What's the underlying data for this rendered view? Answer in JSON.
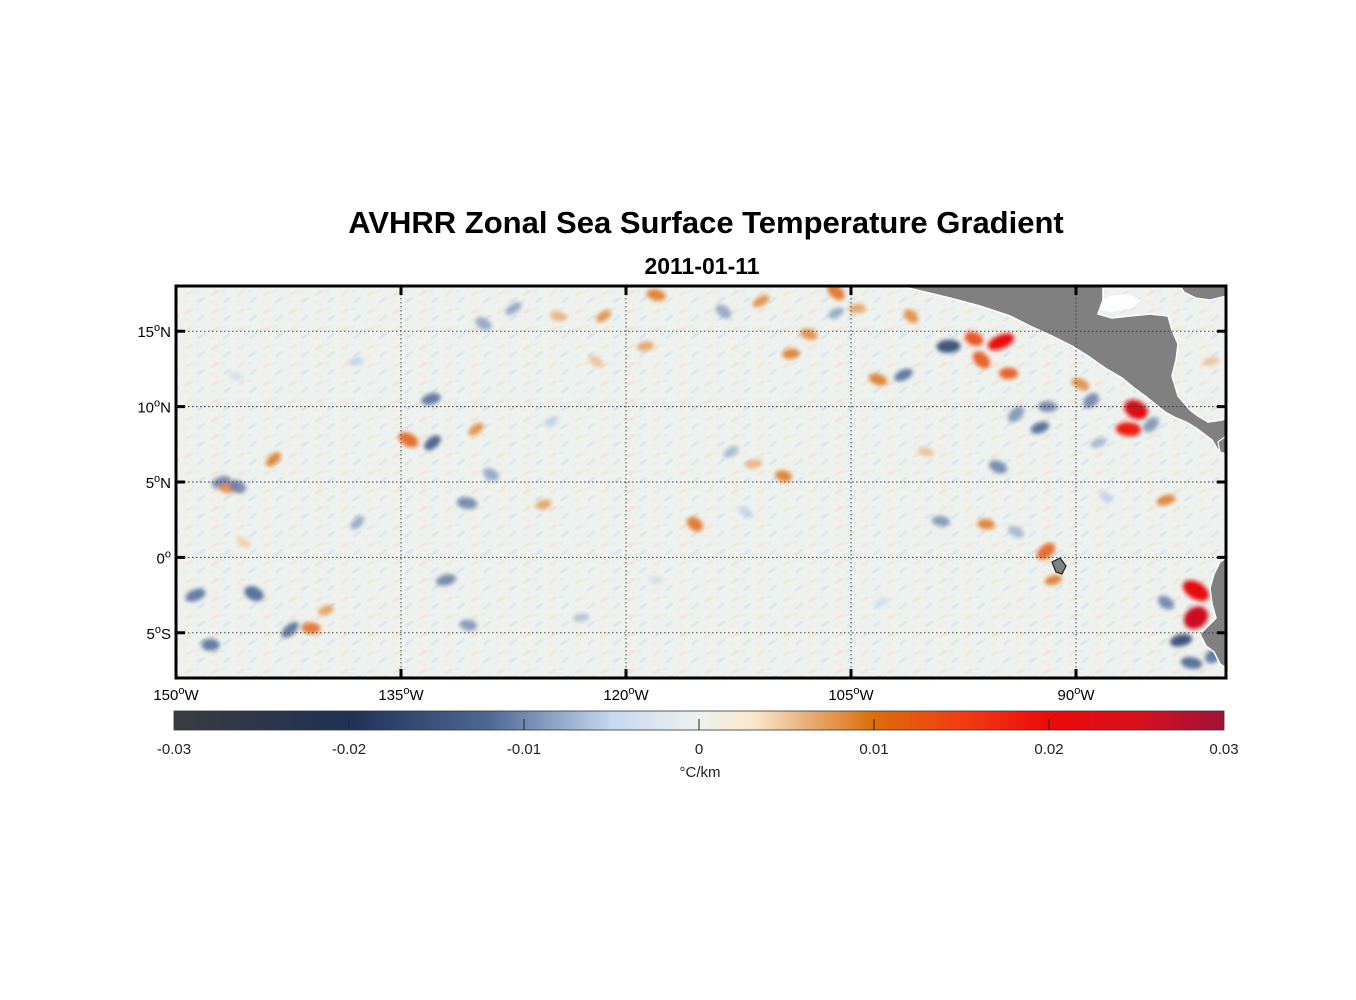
{
  "title": "AVHRR Zonal Sea Surface Temperature Gradient",
  "subtitle": "2011-01-11",
  "map": {
    "lon_range": [
      -150,
      -80
    ],
    "lat_range": [
      -8,
      18
    ],
    "lon_ticks": [
      {
        "value": -150,
        "deg": "150",
        "dir": "W"
      },
      {
        "value": -135,
        "deg": "135",
        "dir": "W"
      },
      {
        "value": -120,
        "deg": "120",
        "dir": "W"
      },
      {
        "value": -105,
        "deg": "105",
        "dir": "W"
      },
      {
        "value": -90,
        "deg": "90",
        "dir": "W"
      }
    ],
    "lat_ticks": [
      {
        "value": 15,
        "deg": "15",
        "dir": "N"
      },
      {
        "value": 10,
        "deg": "10",
        "dir": "N"
      },
      {
        "value": 5,
        "deg": "5",
        "dir": "N"
      },
      {
        "value": 0,
        "deg": "0",
        "dir": ""
      },
      {
        "value": -5,
        "deg": "5",
        "dir": "S"
      }
    ],
    "land_color": "#808080",
    "ocean_base_color": "#eef2ee",
    "features": [
      {
        "lon": -137.9,
        "lat": 2.3,
        "v": -0.009
      },
      {
        "lon": -147.0,
        "lat": 5.0,
        "v": -0.011
      },
      {
        "lon": -146.5,
        "lat": 4.6,
        "v": 0.009
      },
      {
        "lon": -145.9,
        "lat": 4.7,
        "v": -0.011
      },
      {
        "lon": -143.5,
        "lat": 6.5,
        "v": 0.01
      },
      {
        "lon": -148.7,
        "lat": -2.5,
        "v": -0.012
      },
      {
        "lon": -147.7,
        "lat": -5.8,
        "v": -0.012
      },
      {
        "lon": -144.8,
        "lat": -2.4,
        "v": -0.013
      },
      {
        "lon": -142.4,
        "lat": -4.8,
        "v": -0.012
      },
      {
        "lon": -140.0,
        "lat": -3.5,
        "v": 0.008
      },
      {
        "lon": -141.0,
        "lat": -4.7,
        "v": 0.011
      },
      {
        "lon": -134.5,
        "lat": 7.8,
        "v": 0.012
      },
      {
        "lon": -132.9,
        "lat": 7.6,
        "v": -0.014
      },
      {
        "lon": -133.0,
        "lat": 10.5,
        "v": -0.012
      },
      {
        "lon": -130.6,
        "lat": 3.6,
        "v": -0.011
      },
      {
        "lon": -129.0,
        "lat": 5.5,
        "v": -0.009
      },
      {
        "lon": -130.0,
        "lat": 8.5,
        "v": 0.009
      },
      {
        "lon": -132.0,
        "lat": -1.5,
        "v": -0.011
      },
      {
        "lon": -130.5,
        "lat": -4.5,
        "v": -0.01
      },
      {
        "lon": -129.5,
        "lat": 15.5,
        "v": -0.009
      },
      {
        "lon": -127.5,
        "lat": 16.5,
        "v": -0.009
      },
      {
        "lon": -125.5,
        "lat": 3.5,
        "v": 0.008
      },
      {
        "lon": -124.5,
        "lat": 16.0,
        "v": 0.007
      },
      {
        "lon": -122.0,
        "lat": 13.0,
        "v": 0.006
      },
      {
        "lon": -121.5,
        "lat": 16.0,
        "v": 0.009
      },
      {
        "lon": -118.7,
        "lat": 14.0,
        "v": 0.008
      },
      {
        "lon": -118.0,
        "lat": 17.4,
        "v": 0.01
      },
      {
        "lon": -115.4,
        "lat": 2.2,
        "v": 0.011
      },
      {
        "lon": -113.0,
        "lat": 7.0,
        "v": -0.008
      },
      {
        "lon": -111.5,
        "lat": 6.2,
        "v": 0.007
      },
      {
        "lon": -109.5,
        "lat": 5.4,
        "v": 0.01
      },
      {
        "lon": -113.5,
        "lat": 16.3,
        "v": -0.009
      },
      {
        "lon": -111.0,
        "lat": 17.0,
        "v": 0.009
      },
      {
        "lon": -109.0,
        "lat": 13.5,
        "v": 0.01
      },
      {
        "lon": -107.8,
        "lat": 14.8,
        "v": 0.009
      },
      {
        "lon": -106.0,
        "lat": 17.6,
        "v": 0.011
      },
      {
        "lon": -106.0,
        "lat": 16.2,
        "v": -0.009
      },
      {
        "lon": -104.6,
        "lat": 16.5,
        "v": 0.008
      },
      {
        "lon": -103.2,
        "lat": 11.8,
        "v": 0.01
      },
      {
        "lon": -101.0,
        "lat": 16.0,
        "v": 0.009
      },
      {
        "lon": -101.5,
        "lat": 12.1,
        "v": -0.012
      },
      {
        "lon": -98.5,
        "lat": 14.0,
        "v": -0.016
      },
      {
        "lon": -96.8,
        "lat": 14.5,
        "v": 0.014
      },
      {
        "lon": -96.3,
        "lat": 13.1,
        "v": 0.013
      },
      {
        "lon": -95.0,
        "lat": 14.3,
        "v": 0.021
      },
      {
        "lon": -94.5,
        "lat": 12.2,
        "v": 0.013
      },
      {
        "lon": -95.2,
        "lat": 6.0,
        "v": -0.011
      },
      {
        "lon": -94.0,
        "lat": 9.5,
        "v": -0.01
      },
      {
        "lon": -92.4,
        "lat": 8.6,
        "v": -0.013
      },
      {
        "lon": -91.9,
        "lat": 10.0,
        "v": -0.011
      },
      {
        "lon": -89.7,
        "lat": 11.5,
        "v": 0.009
      },
      {
        "lon": -89.0,
        "lat": 10.4,
        "v": -0.011
      },
      {
        "lon": -88.5,
        "lat": 7.6,
        "v": -0.008
      },
      {
        "lon": -86.5,
        "lat": 8.5,
        "v": 0.018
      },
      {
        "lon": -86.0,
        "lat": 9.8,
        "v": 0.024
      },
      {
        "lon": -85.0,
        "lat": 8.8,
        "v": -0.01
      },
      {
        "lon": -84.0,
        "lat": 3.8,
        "v": 0.01
      },
      {
        "lon": -96.0,
        "lat": 2.2,
        "v": 0.01
      },
      {
        "lon": -94.0,
        "lat": 1.7,
        "v": -0.008
      },
      {
        "lon": -92.0,
        "lat": 0.4,
        "v": 0.012
      },
      {
        "lon": -91.5,
        "lat": -1.5,
        "v": 0.01
      },
      {
        "lon": -99.0,
        "lat": 2.4,
        "v": -0.01
      },
      {
        "lon": -82.0,
        "lat": -2.2,
        "v": 0.022
      },
      {
        "lon": -82.0,
        "lat": -4.0,
        "v": 0.026
      },
      {
        "lon": -83.0,
        "lat": -5.5,
        "v": -0.016
      },
      {
        "lon": -82.3,
        "lat": -7.0,
        "v": -0.013
      },
      {
        "lon": -84.0,
        "lat": -3.0,
        "v": -0.011
      },
      {
        "lon": -80.8,
        "lat": -6.5,
        "v": -0.012
      },
      {
        "lon": -81.0,
        "lat": 13.0,
        "v": 0.006
      },
      {
        "lon": -118.0,
        "lat": -1.5,
        "v": -0.005
      },
      {
        "lon": -112.0,
        "lat": 3.0,
        "v": -0.006
      },
      {
        "lon": -103.0,
        "lat": -3.0,
        "v": -0.005
      },
      {
        "lon": -138.0,
        "lat": 13.0,
        "v": -0.006
      },
      {
        "lon": -146.0,
        "lat": 12.0,
        "v": -0.005
      },
      {
        "lon": -145.5,
        "lat": 1.0,
        "v": 0.005
      },
      {
        "lon": -125.0,
        "lat": 9.0,
        "v": -0.006
      },
      {
        "lon": -123.0,
        "lat": -4.0,
        "v": -0.007
      },
      {
        "lon": -100.0,
        "lat": 7.0,
        "v": 0.006
      },
      {
        "lon": -88.0,
        "lat": 4.0,
        "v": -0.006
      }
    ]
  },
  "colorbar": {
    "range": [
      -0.03,
      0.03
    ],
    "ticks": [
      "-0.03",
      "-0.02",
      "-0.01",
      "0",
      "0.01",
      "0.02",
      "0.03"
    ],
    "label": "°C/km",
    "stops": [
      {
        "v": -0.03,
        "c": "#3a3c40"
      },
      {
        "v": -0.02,
        "c": "#1f3155"
      },
      {
        "v": -0.012,
        "c": "#4e6896"
      },
      {
        "v": -0.005,
        "c": "#c5d8ef"
      },
      {
        "v": 0.0,
        "c": "#eef2ee"
      },
      {
        "v": 0.003,
        "c": "#fbe8cf"
      },
      {
        "v": 0.006,
        "c": "#e9b17e"
      },
      {
        "v": 0.01,
        "c": "#dc6d0a"
      },
      {
        "v": 0.015,
        "c": "#f03d14"
      },
      {
        "v": 0.02,
        "c": "#ee0a0a"
      },
      {
        "v": 0.025,
        "c": "#d8101c"
      },
      {
        "v": 0.03,
        "c": "#a0123a"
      }
    ]
  }
}
